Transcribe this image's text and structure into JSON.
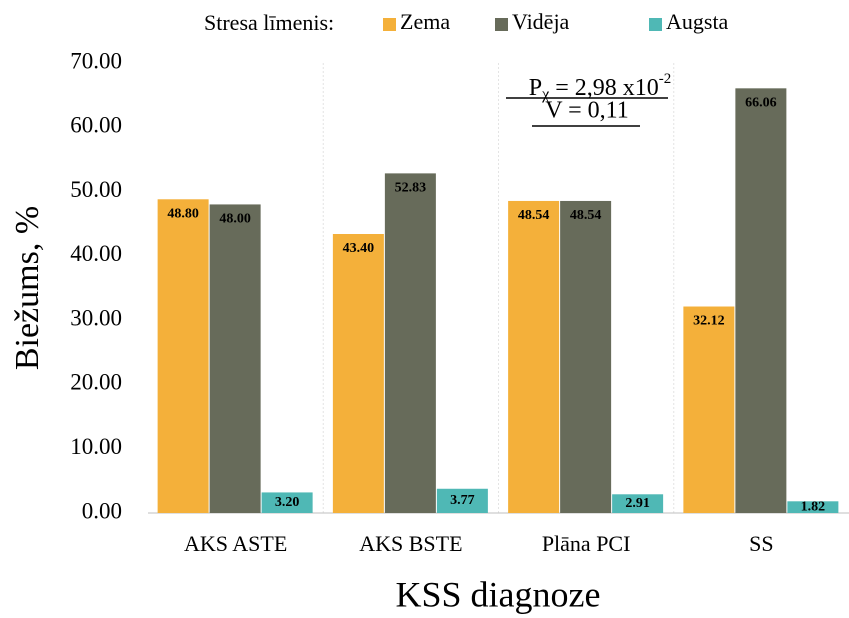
{
  "chart_data": {
    "type": "bar",
    "legend_title": "Stresa līmenis:",
    "categories": [
      "AKS ASTE",
      "AKS BSTE",
      "Plāna PCI",
      "SS"
    ],
    "series": [
      {
        "name": "Zema",
        "color": "#f4b03a",
        "values": [
          48.8,
          43.4,
          48.54,
          32.12
        ],
        "value_labels": [
          "48.80",
          "43.40",
          "48.54",
          "32.12"
        ]
      },
      {
        "name": "Vidēja",
        "color": "#676b5a",
        "values": [
          48,
          52.83,
          48.54,
          66.06
        ],
        "value_labels": [
          "48.00",
          "52.83",
          "48.54",
          "66.06"
        ]
      },
      {
        "name": "Augsta",
        "color": "#4fb8b5",
        "values": [
          3.2,
          3.77,
          2.91,
          1.82
        ],
        "value_labels": [
          "3.20",
          "3.77",
          "2.91",
          "1.82"
        ]
      }
    ],
    "ylim": [
      0,
      70
    ],
    "yticks": [
      {
        "value": 0,
        "label": "0.00"
      },
      {
        "value": 10,
        "label": "10.00"
      },
      {
        "value": 20,
        "label": "20.00"
      },
      {
        "value": 30,
        "label": "30.00"
      },
      {
        "value": 40,
        "label": "40.00"
      },
      {
        "value": 50,
        "label": "50.00"
      },
      {
        "value": 60,
        "label": "60.00"
      },
      {
        "value": 70,
        "label": "70.00"
      }
    ],
    "ylabel": "Biežums, %",
    "xlabel": "KSS diagnoze",
    "annotation": {
      "p": "P",
      "p_sub": "χ",
      "p_text": " = 2,98 x10",
      "p_sup": "-2",
      "v_text": "V = 0,11"
    }
  }
}
